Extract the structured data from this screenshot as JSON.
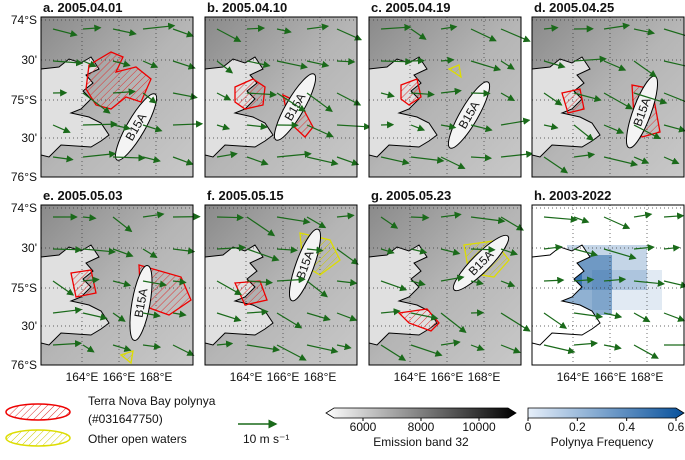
{
  "panels": [
    {
      "title": "a. 2005.04.01",
      "iceberg": "B15A"
    },
    {
      "title": "b. 2005.04.10",
      "iceberg": "B15A"
    },
    {
      "title": "c. 2005.04.19",
      "iceberg": "B15A"
    },
    {
      "title": "d. 2005.04.25",
      "iceberg": "B15A"
    },
    {
      "title": "e. 2005.05.03",
      "iceberg": "B15A"
    },
    {
      "title": "f. 2005.05.15",
      "iceberg": "B15A"
    },
    {
      "title": "g. 2005.05.23",
      "iceberg": "B15A"
    },
    {
      "title": "h. 2003-2022"
    }
  ],
  "lat_labels": [
    "74°S",
    "30'",
    "75°S",
    "30'",
    "76°S"
  ],
  "lon_labels": [
    "164°E",
    "166°E",
    "168°E"
  ],
  "legend": {
    "polynya": [
      "Terra Nova Bay polynya",
      "(#031647750)"
    ],
    "other": "Other open waters",
    "wind": "10 m s⁻¹"
  },
  "colorbars": [
    {
      "label": "Emission band 32",
      "lim": [
        5000,
        11000
      ],
      "ticks": [
        6000,
        8000,
        10000
      ]
    },
    {
      "label": "Polynya Frequency",
      "lim": [
        0,
        0.6
      ],
      "ticks": [
        0,
        0.2,
        0.4,
        0.6
      ]
    }
  ]
}
